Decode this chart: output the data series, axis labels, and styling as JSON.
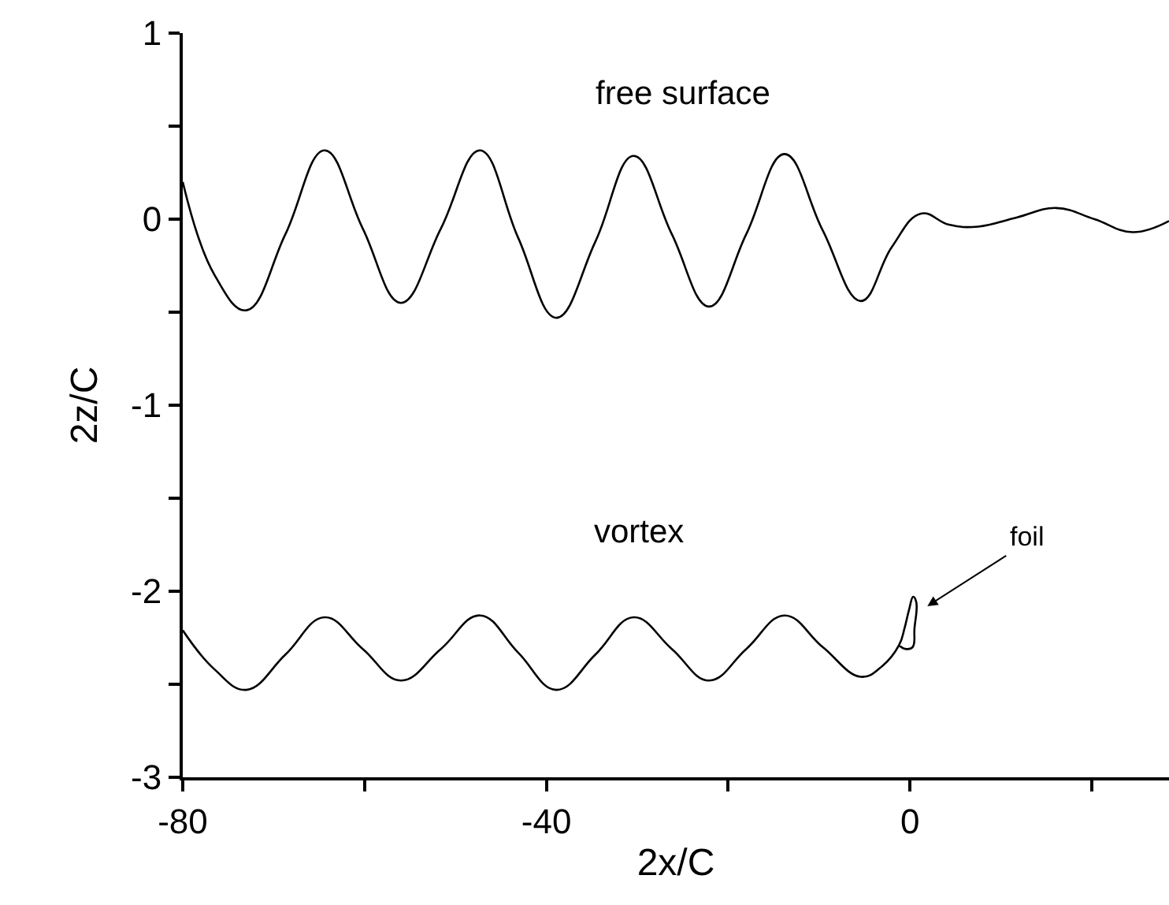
{
  "chart_data": {
    "type": "line",
    "xlabel": "2x/C",
    "ylabel": "2z/C",
    "series": [
      {
        "name": "free surface",
        "color": "#000000",
        "x": [
          -80,
          -76.5,
          -73,
          -68.7,
          -64.4,
          -60.2,
          -56,
          -51.6,
          -47.3,
          -43.1,
          -38.9,
          -34.6,
          -30.4,
          -26.2,
          -22.1,
          -18,
          -13.8,
          -9.6,
          -5.4,
          -2,
          1.2,
          4.3,
          7.5,
          11.8,
          16.1,
          20.3,
          24.5,
          28.5
        ],
        "values": [
          0.2,
          -0.3,
          -0.49,
          -0.08,
          0.37,
          -0.05,
          -0.45,
          -0.05,
          0.37,
          -0.1,
          -0.53,
          -0.12,
          0.34,
          -0.08,
          -0.47,
          -0.08,
          0.35,
          -0.06,
          -0.44,
          -0.15,
          0.03,
          -0.03,
          -0.04,
          0.01,
          0.06,
          0,
          -0.07,
          -0.01
        ]
      },
      {
        "name": "vortex",
        "color": "#000000",
        "x": [
          -80,
          -76.5,
          -73,
          -68.7,
          -64.4,
          -60.2,
          -56,
          -51.6,
          -47.3,
          -43.1,
          -38.9,
          -34.6,
          -30.4,
          -26.2,
          -22.1,
          -18,
          -13.8,
          -9.6,
          -5.4,
          -3,
          -1.2,
          -0.6,
          -0.1,
          0.35,
          0.7,
          0.5,
          0.3,
          -0.5,
          -1.2
        ],
        "values": [
          -2.21,
          -2.42,
          -2.53,
          -2.34,
          -2.14,
          -2.31,
          -2.48,
          -2.31,
          -2.13,
          -2.33,
          -2.53,
          -2.34,
          -2.14,
          -2.31,
          -2.48,
          -2.31,
          -2.13,
          -2.3,
          -2.46,
          -2.4,
          -2.29,
          -2.2,
          -2.1,
          -2.03,
          -2.06,
          -2.2,
          -2.3,
          -2.31,
          -2.29
        ]
      }
    ],
    "annotations": [
      "foil"
    ],
    "xlim": [
      -80,
      28.5
    ],
    "ylim": [
      -3,
      1
    ],
    "xticks": [
      -80,
      {
        "value": -60,
        "label": null
      },
      -40,
      {
        "value": -20,
        "label": null
      },
      0,
      {
        "value": 20,
        "label": null
      }
    ],
    "yticks": [
      -3,
      {
        "value": -2.5,
        "label": null
      },
      -2,
      {
        "value": -1.5,
        "label": null
      },
      -1,
      {
        "value": -0.5,
        "label": null
      },
      0,
      {
        "value": 0.5,
        "label": null
      },
      1
    ],
    "grid": false,
    "legend": false,
    "marker": "none",
    "line_style": "solid"
  }
}
